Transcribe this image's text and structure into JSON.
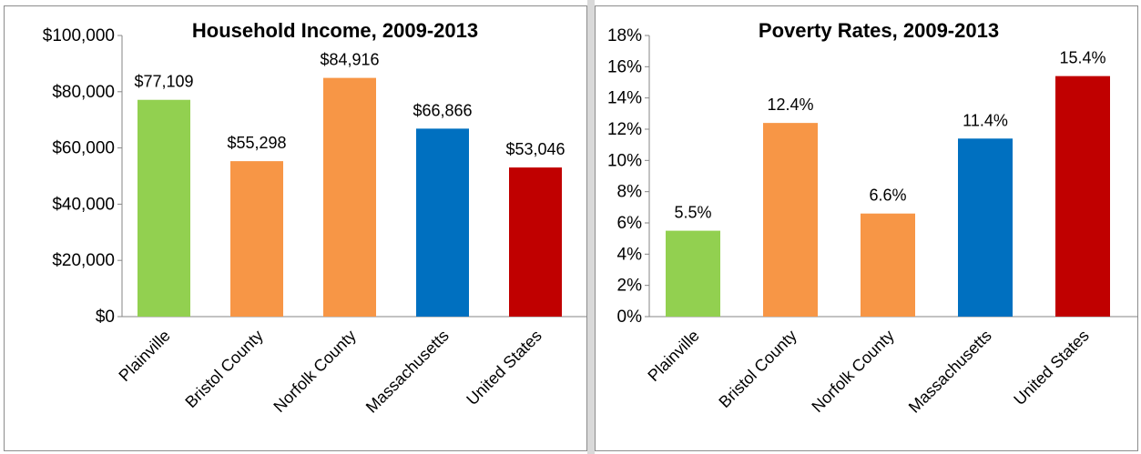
{
  "chart_data": [
    {
      "type": "bar",
      "title": "Household Income, 2009-2013",
      "xlabel": "",
      "ylabel": "",
      "categories": [
        "Plainville",
        "Bristol County",
        "Norfolk County",
        "Massachusetts",
        "United States"
      ],
      "values": [
        77109,
        55298,
        84916,
        66866,
        53046
      ],
      "value_labels": [
        "$77,109",
        "$55,298",
        "$84,916",
        "$66,866",
        "$53,046"
      ],
      "colors": [
        "#92d050",
        "#f79646",
        "#f79646",
        "#0070c0",
        "#c00000"
      ],
      "ylim": [
        0,
        100000
      ],
      "yticks": [
        0,
        20000,
        40000,
        60000,
        80000,
        100000
      ],
      "ytick_labels": [
        "$0",
        "$20,000",
        "$40,000",
        "$60,000",
        "$80,000",
        "$100,000"
      ],
      "grid": false,
      "legend": "none"
    },
    {
      "type": "bar",
      "title": "Poverty Rates, 2009-2013",
      "xlabel": "",
      "ylabel": "",
      "categories": [
        "Plainville",
        "Bristol County",
        "Norfolk County",
        "Massachusetts",
        "United States"
      ],
      "values": [
        5.5,
        12.4,
        6.6,
        11.4,
        15.4
      ],
      "value_labels": [
        "5.5%",
        "12.4%",
        "6.6%",
        "11.4%",
        "15.4%"
      ],
      "colors": [
        "#92d050",
        "#f79646",
        "#f79646",
        "#0070c0",
        "#c00000"
      ],
      "ylim": [
        0,
        18
      ],
      "yticks": [
        0,
        2,
        4,
        6,
        8,
        10,
        12,
        14,
        16,
        18
      ],
      "ytick_labels": [
        "0%",
        "2%",
        "4%",
        "6%",
        "8%",
        "10%",
        "12%",
        "14%",
        "16%",
        "18%"
      ],
      "grid": false,
      "legend": "none"
    }
  ]
}
